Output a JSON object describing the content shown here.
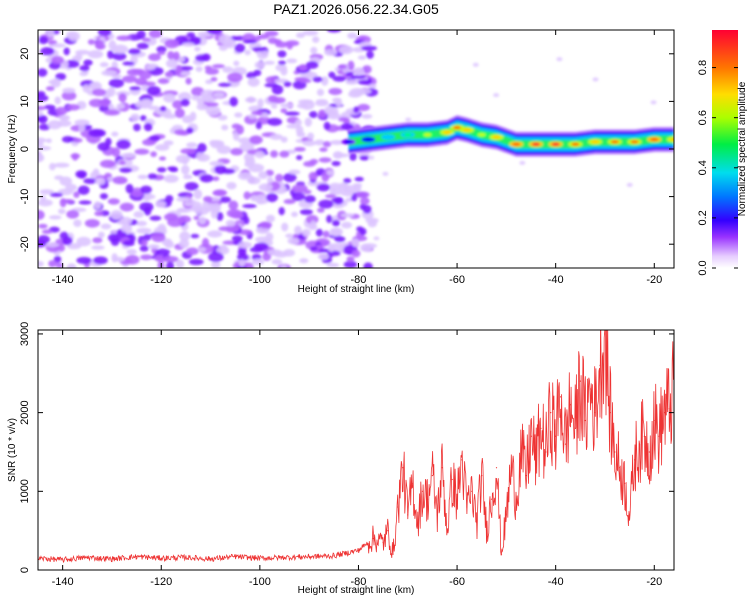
{
  "figure_title": "PAZ1.2026.056.22.34.G05",
  "chart_data": [
    {
      "type": "heatmap",
      "title": "PAZ1.2026.056.22.34.G05",
      "xlabel": "Height of straight line (km)",
      "ylabel": "Frequency (Hz)",
      "xlim": [
        -145,
        -16
      ],
      "ylim": [
        -25,
        25
      ],
      "xticks": [
        -140,
        -120,
        -100,
        -80,
        -60,
        -40,
        -20
      ],
      "yticks": [
        -20,
        -10,
        0,
        10,
        20
      ],
      "xtick_labels": [
        "-140",
        "-120",
        "-100",
        "-80",
        "-60",
        "-40",
        "-20"
      ],
      "ytick_labels": [
        "-20",
        "-10",
        "0",
        "10",
        "20"
      ],
      "colorbar": {
        "label": "Normalized spectral amplitude",
        "range": [
          0,
          0.95
        ],
        "ticks": [
          0.0,
          0.2,
          0.4,
          0.6,
          0.8
        ],
        "tick_labels": [
          "0.0",
          "0.2",
          "0.4",
          "0.6",
          "0.8"
        ],
        "colors": [
          "#ffffff",
          "#cc66ff",
          "#7700ff",
          "#0000ff",
          "#00ccff",
          "#00ff66",
          "#ccff00",
          "#ffcc00",
          "#ff6600",
          "#ff0033"
        ]
      },
      "noise_region": {
        "x_range": [
          -145,
          -80
        ],
        "y_range": [
          -25,
          25
        ],
        "amplitude_range": [
          0.0,
          0.15
        ]
      },
      "signal_band": {
        "x": [
          -82,
          -78,
          -74,
          -70,
          -66,
          -62,
          -60,
          -58,
          -55,
          -52,
          -48,
          -44,
          -40,
          -36,
          -32,
          -28,
          -24,
          -20,
          -16
        ],
        "frequency_hz": [
          1.5,
          2.0,
          2.5,
          3.0,
          3.0,
          3.5,
          4.5,
          4.0,
          3.0,
          2.5,
          1.0,
          1.0,
          1.0,
          1.0,
          1.5,
          1.5,
          1.5,
          2.0,
          2.0
        ],
        "peak_amplitude": [
          0.3,
          0.35,
          0.45,
          0.55,
          0.6,
          0.75,
          0.8,
          0.7,
          0.6,
          0.7,
          0.85,
          0.9,
          0.9,
          0.8,
          0.75,
          0.8,
          0.8,
          0.85,
          0.7
        ]
      }
    },
    {
      "type": "line",
      "xlabel": "Height of straight line (km)",
      "ylabel": "SNR (10 * v/v)",
      "xlim": [
        -145,
        -16
      ],
      "ylim": [
        0,
        3050
      ],
      "xticks": [
        -140,
        -120,
        -100,
        -80,
        -60,
        -40,
        -20
      ],
      "yticks": [
        0,
        1000,
        2000,
        3000
      ],
      "xtick_labels": [
        "-140",
        "-120",
        "-100",
        "-80",
        "-60",
        "-40",
        "-20"
      ],
      "ytick_labels": [
        "0",
        "1000",
        "2000",
        "3000"
      ],
      "series": [
        {
          "name": "SNR",
          "color": "#ee3333",
          "x": [
            -145,
            -140,
            -135,
            -130,
            -125,
            -120,
            -115,
            -110,
            -105,
            -100,
            -95,
            -90,
            -85,
            -80,
            -77,
            -75,
            -74,
            -73,
            -72,
            -71,
            -70,
            -69,
            -68,
            -67,
            -66,
            -65,
            -64,
            -63,
            -62,
            -61,
            -60,
            -59,
            -58,
            -57,
            -56,
            -55,
            -54,
            -53,
            -52,
            -51,
            -50,
            -49,
            -48,
            -47,
            -46,
            -45,
            -44,
            -43,
            -42,
            -41,
            -40,
            -39,
            -38,
            -37,
            -36,
            -35,
            -34,
            -33,
            -32,
            -31,
            -30,
            -29,
            -28,
            -27,
            -26,
            -25,
            -24,
            -23,
            -22,
            -21,
            -20,
            -19,
            -18,
            -17,
            -16
          ],
          "y": [
            150,
            130,
            160,
            140,
            170,
            150,
            160,
            140,
            170,
            150,
            160,
            170,
            180,
            250,
            400,
            350,
            500,
            200,
            800,
            1300,
            700,
            1100,
            600,
            1000,
            900,
            1200,
            700,
            1300,
            500,
            1150,
            900,
            1400,
            800,
            1000,
            600,
            1200,
            500,
            900,
            1300,
            200,
            700,
            1300,
            900,
            1500,
            1200,
            1700,
            1400,
            1800,
            1500,
            2000,
            1700,
            2200,
            1600,
            2100,
            1800,
            2400,
            1900,
            2300,
            2000,
            2600,
            3000,
            2000,
            1500,
            1300,
            1100,
            700,
            1400,
            1600,
            1700,
            1500,
            1900,
            1700,
            2000,
            2050,
            2300
          ]
        }
      ]
    }
  ]
}
